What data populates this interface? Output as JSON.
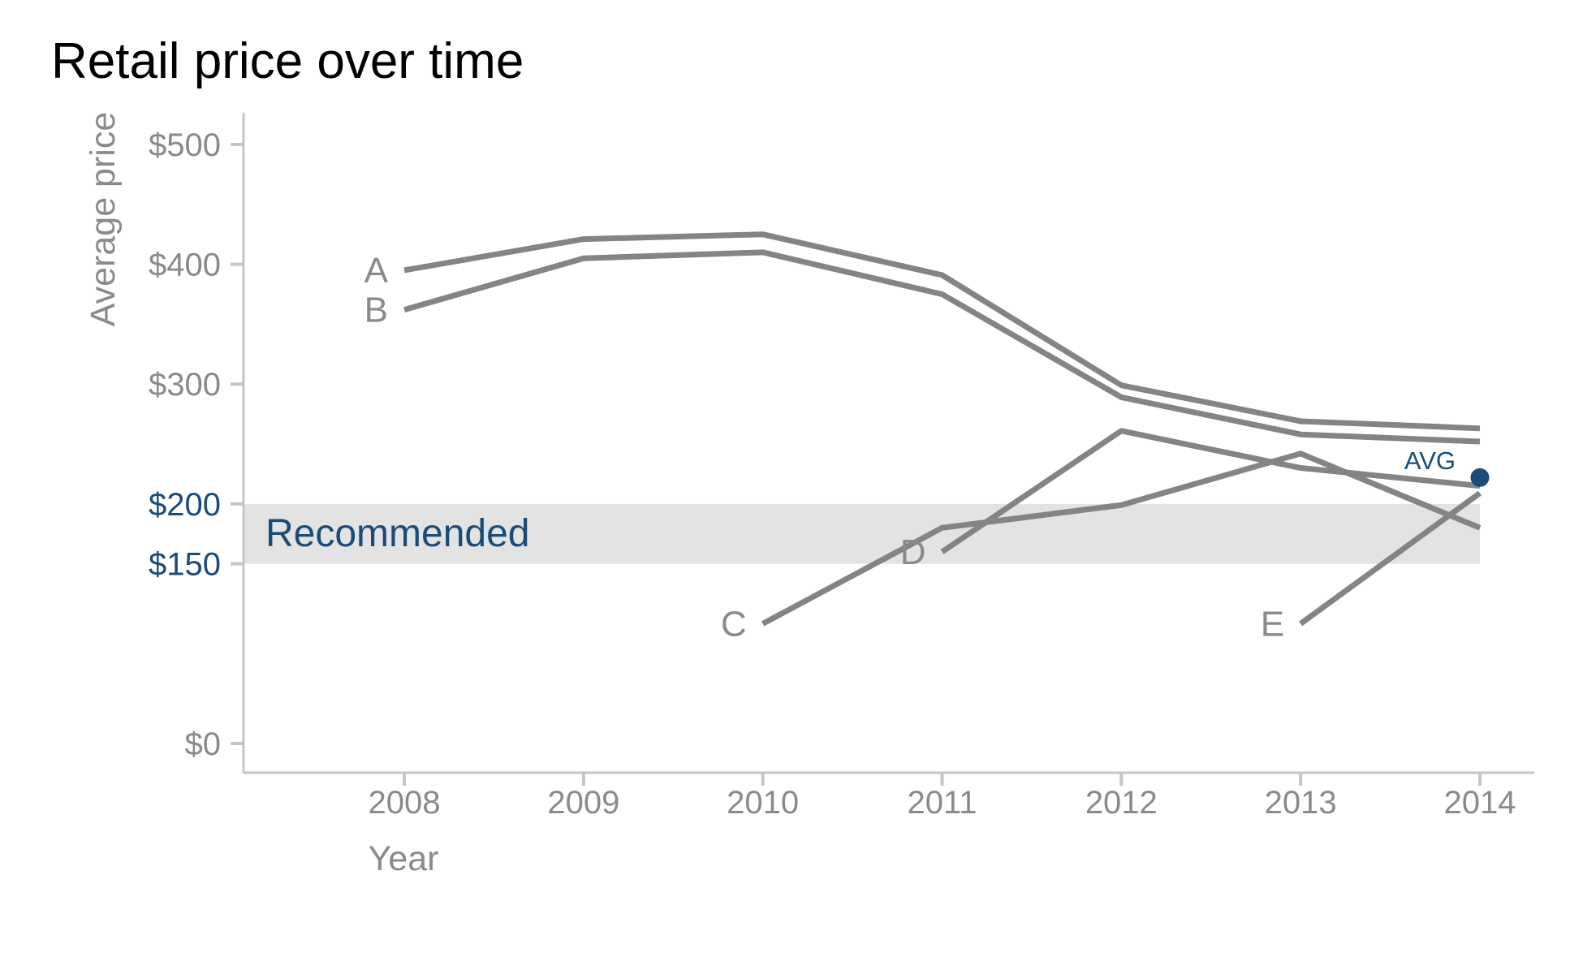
{
  "title": "Retail price over time",
  "colors": {
    "title": "#000000",
    "line_gray": "#848484",
    "label_gray": "#8A8A8A",
    "axis_gray": "#C5C5C5",
    "band_gray": "#E3E3E3",
    "navy": "#1B4C78"
  },
  "chart_data": {
    "type": "line",
    "title": "Retail price over time",
    "xlabel": "Year",
    "ylabel": "Average price",
    "grid": false,
    "legend": "inline-labels-at-series-start",
    "xlim": [
      2007.1,
      2014.3
    ],
    "ylim": [
      0,
      525
    ],
    "x_ticks": [
      "2008",
      "2009",
      "2010",
      "2011",
      "2012",
      "2013",
      "2014"
    ],
    "y_ticks": [
      {
        "label": "$0",
        "value": 0,
        "highlight": false
      },
      {
        "label": "$150",
        "value": 150,
        "highlight": true
      },
      {
        "label": "$200",
        "value": 200,
        "highlight": true
      },
      {
        "label": "$300",
        "value": 300,
        "highlight": false
      },
      {
        "label": "$400",
        "value": 400,
        "highlight": false
      },
      {
        "label": "$500",
        "value": 500,
        "highlight": false
      }
    ],
    "band": {
      "label": "Recommended",
      "y_from": 150,
      "y_to": 200
    },
    "series": [
      {
        "name": "A",
        "x": [
          2008,
          2009,
          2010,
          2011,
          2012,
          2013,
          2014
        ],
        "values": [
          395,
          421,
          425,
          391,
          299,
          269,
          263
        ]
      },
      {
        "name": "B",
        "x": [
          2008,
          2009,
          2010,
          2011,
          2012,
          2013,
          2014
        ],
        "values": [
          362,
          405,
          410,
          375,
          289,
          258,
          252
        ]
      },
      {
        "name": "C",
        "x": [
          2010,
          2011,
          2012,
          2013,
          2014
        ],
        "values": [
          100,
          180,
          199,
          242,
          180
        ]
      },
      {
        "name": "D",
        "x": [
          2011,
          2012,
          2013,
          2014
        ],
        "values": [
          160,
          261,
          230,
          215
        ]
      },
      {
        "name": "E",
        "x": [
          2013,
          2014
        ],
        "values": [
          100,
          209
        ]
      }
    ],
    "avg_point": {
      "label": "AVG",
      "x": 2014,
      "value": 222
    }
  }
}
